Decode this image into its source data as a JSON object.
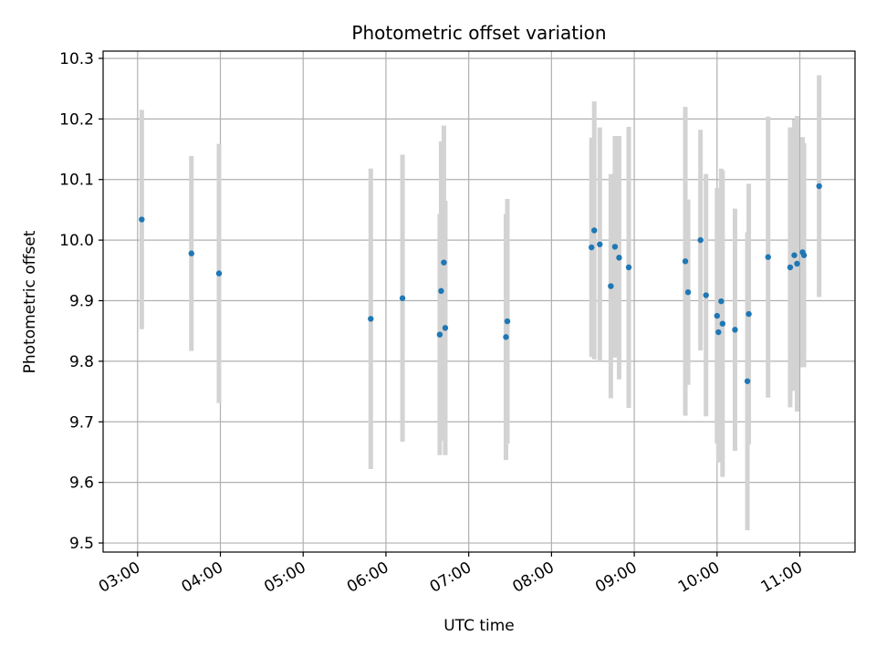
{
  "chart_data": {
    "type": "scatter",
    "title": "Photometric offset variation",
    "xlabel": "UTC time",
    "ylabel": "Photometric offset",
    "xlim": [
      "02:35",
      "11:40"
    ],
    "ylim": [
      9.485,
      10.312
    ],
    "grid": true,
    "x_ticks": [
      "03:00",
      "04:00",
      "05:00",
      "06:00",
      "07:00",
      "08:00",
      "09:00",
      "10:00",
      "11:00"
    ],
    "y_ticks": [
      9.5,
      9.6,
      9.7,
      9.8,
      9.9,
      10.0,
      10.1,
      10.2,
      10.3
    ],
    "y_tick_labels": [
      "9.5",
      "9.6",
      "9.7",
      "9.8",
      "9.9",
      "10.0",
      "10.1",
      "10.2",
      "10.3"
    ],
    "colors": {
      "marker": "#1f77b4",
      "errorbar": "#d3d3d3",
      "grid": "#b0b0b0"
    },
    "points": [
      {
        "x": "03:03",
        "y": 10.034,
        "lo": 9.853,
        "hi": 10.215
      },
      {
        "x": "03:39",
        "y": 9.978,
        "lo": 9.817,
        "hi": 10.139
      },
      {
        "x": "03:59",
        "y": 9.945,
        "lo": 9.731,
        "hi": 10.159
      },
      {
        "x": "05:49",
        "y": 9.87,
        "lo": 9.622,
        "hi": 10.118
      },
      {
        "x": "06:12",
        "y": 9.904,
        "lo": 9.667,
        "hi": 10.141
      },
      {
        "x": "06:39",
        "y": 9.844,
        "lo": 9.645,
        "hi": 10.043
      },
      {
        "x": "06:40",
        "y": 9.916,
        "lo": 9.669,
        "hi": 10.163
      },
      {
        "x": "06:42",
        "y": 9.963,
        "lo": 9.737,
        "hi": 10.189
      },
      {
        "x": "06:43",
        "y": 9.855,
        "lo": 9.645,
        "hi": 10.065
      },
      {
        "x": "07:27",
        "y": 9.84,
        "lo": 9.637,
        "hi": 10.043
      },
      {
        "x": "07:28",
        "y": 9.866,
        "lo": 9.664,
        "hi": 10.068
      },
      {
        "x": "08:29",
        "y": 9.988,
        "lo": 9.807,
        "hi": 10.169
      },
      {
        "x": "08:31",
        "y": 10.016,
        "lo": 9.803,
        "hi": 10.229
      },
      {
        "x": "08:35",
        "y": 9.993,
        "lo": 9.8,
        "hi": 10.186
      },
      {
        "x": "08:43",
        "y": 9.924,
        "lo": 9.739,
        "hi": 10.109
      },
      {
        "x": "08:46",
        "y": 9.989,
        "lo": 9.806,
        "hi": 10.172
      },
      {
        "x": "08:49",
        "y": 9.971,
        "lo": 9.77,
        "hi": 10.172
      },
      {
        "x": "08:56",
        "y": 9.955,
        "lo": 9.723,
        "hi": 10.187
      },
      {
        "x": "09:37",
        "y": 9.965,
        "lo": 9.71,
        "hi": 10.22
      },
      {
        "x": "09:39",
        "y": 9.914,
        "lo": 9.761,
        "hi": 10.067
      },
      {
        "x": "09:48",
        "y": 10.0,
        "lo": 9.818,
        "hi": 10.182
      },
      {
        "x": "09:52",
        "y": 9.909,
        "lo": 9.709,
        "hi": 10.109
      },
      {
        "x": "10:00",
        "y": 9.875,
        "lo": 9.664,
        "hi": 10.086
      },
      {
        "x": "10:01",
        "y": 9.848,
        "lo": 9.633,
        "hi": 10.063
      },
      {
        "x": "10:03",
        "y": 9.899,
        "lo": 9.68,
        "hi": 10.118
      },
      {
        "x": "10:04",
        "y": 9.862,
        "lo": 9.609,
        "hi": 10.115
      },
      {
        "x": "10:13",
        "y": 9.852,
        "lo": 9.652,
        "hi": 10.052
      },
      {
        "x": "10:22",
        "y": 9.767,
        "lo": 9.521,
        "hi": 10.013
      },
      {
        "x": "10:23",
        "y": 9.878,
        "lo": 9.663,
        "hi": 10.093
      },
      {
        "x": "10:37",
        "y": 9.972,
        "lo": 9.74,
        "hi": 10.204
      },
      {
        "x": "10:53",
        "y": 9.955,
        "lo": 9.724,
        "hi": 10.186
      },
      {
        "x": "10:56",
        "y": 9.975,
        "lo": 9.751,
        "hi": 10.199
      },
      {
        "x": "10:58",
        "y": 9.961,
        "lo": 9.717,
        "hi": 10.205
      },
      {
        "x": "11:02",
        "y": 9.98,
        "lo": 9.79,
        "hi": 10.17
      },
      {
        "x": "11:03",
        "y": 9.975,
        "lo": 9.79,
        "hi": 10.16
      },
      {
        "x": "11:14",
        "y": 10.089,
        "lo": 9.906,
        "hi": 10.272
      }
    ]
  }
}
